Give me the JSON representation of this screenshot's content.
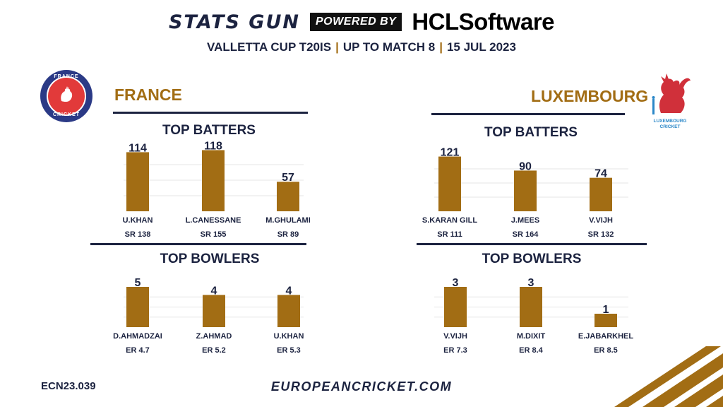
{
  "header": {
    "brand": "STATS GUN",
    "powered_by": "POWERED BY",
    "sponsor": "HCLSoftware",
    "subtitle_parts": [
      "VALLETTA CUP T20IS",
      "UP TO MATCH 8",
      "15 JUL 2023"
    ],
    "separator": "|"
  },
  "teams": {
    "left": {
      "name": "FRANCE",
      "logo_text_top": "FRANCE",
      "logo_text_bottom": "CRICKET",
      "logo_colors": {
        "ring": "#2b3a86",
        "center": "#e23a3a"
      }
    },
    "right": {
      "name": "LUXEMBOURG",
      "logo_text": "LUXEMBOURG CRICKET",
      "logo_colors": {
        "lion": "#d0303a",
        "text": "#2a87c8"
      }
    }
  },
  "sections": {
    "batters_title": "TOP BATTERS",
    "bowlers_title": "TOP BOWLERS"
  },
  "colors": {
    "bar": "#a26d14",
    "navy": "#1c2340",
    "gold": "#a26d14",
    "grid": "#e6e6e6"
  },
  "chart_data": [
    {
      "id": "france-batters",
      "type": "bar",
      "title": "TOP BATTERS",
      "categories": [
        "U.KHAN",
        "L.CANESSANE",
        "M.GHULAMI"
      ],
      "values": [
        114,
        118,
        57
      ],
      "sublabels": [
        "SR 138",
        "SR 155",
        "SR 89"
      ],
      "ylim": [
        0,
        120
      ],
      "grid": true
    },
    {
      "id": "lux-batters",
      "type": "bar",
      "title": "TOP BATTERS",
      "categories": [
        "S.KARAN GILL",
        "J.MEES",
        "V.VIJH"
      ],
      "values": [
        121,
        90,
        74
      ],
      "sublabels": [
        "SR 111",
        "SR 164",
        "SR 132"
      ],
      "ylim": [
        0,
        125
      ],
      "grid": true
    },
    {
      "id": "france-bowlers",
      "type": "bar",
      "title": "TOP BOWLERS",
      "categories": [
        "D.AHMADZAI",
        "Z.AHMAD",
        "U.KHAN"
      ],
      "values": [
        5,
        4,
        4
      ],
      "sublabels": [
        "ER 4.7",
        "ER 5.2",
        "ER 5.3"
      ],
      "ylim": [
        0,
        5
      ],
      "grid": true
    },
    {
      "id": "lux-bowlers",
      "type": "bar",
      "title": "TOP BOWLERS",
      "categories": [
        "V.VIJH",
        "M.DIXIT",
        "E.JABARKHEL"
      ],
      "values": [
        3,
        3,
        1
      ],
      "sublabels": [
        "ER 7.3",
        "ER 8.4",
        "ER 8.5"
      ],
      "ylim": [
        0,
        3
      ],
      "grid": true
    }
  ],
  "footer": {
    "code": "ECN23.039",
    "url": "EUROPEANCRICKET.COM"
  }
}
